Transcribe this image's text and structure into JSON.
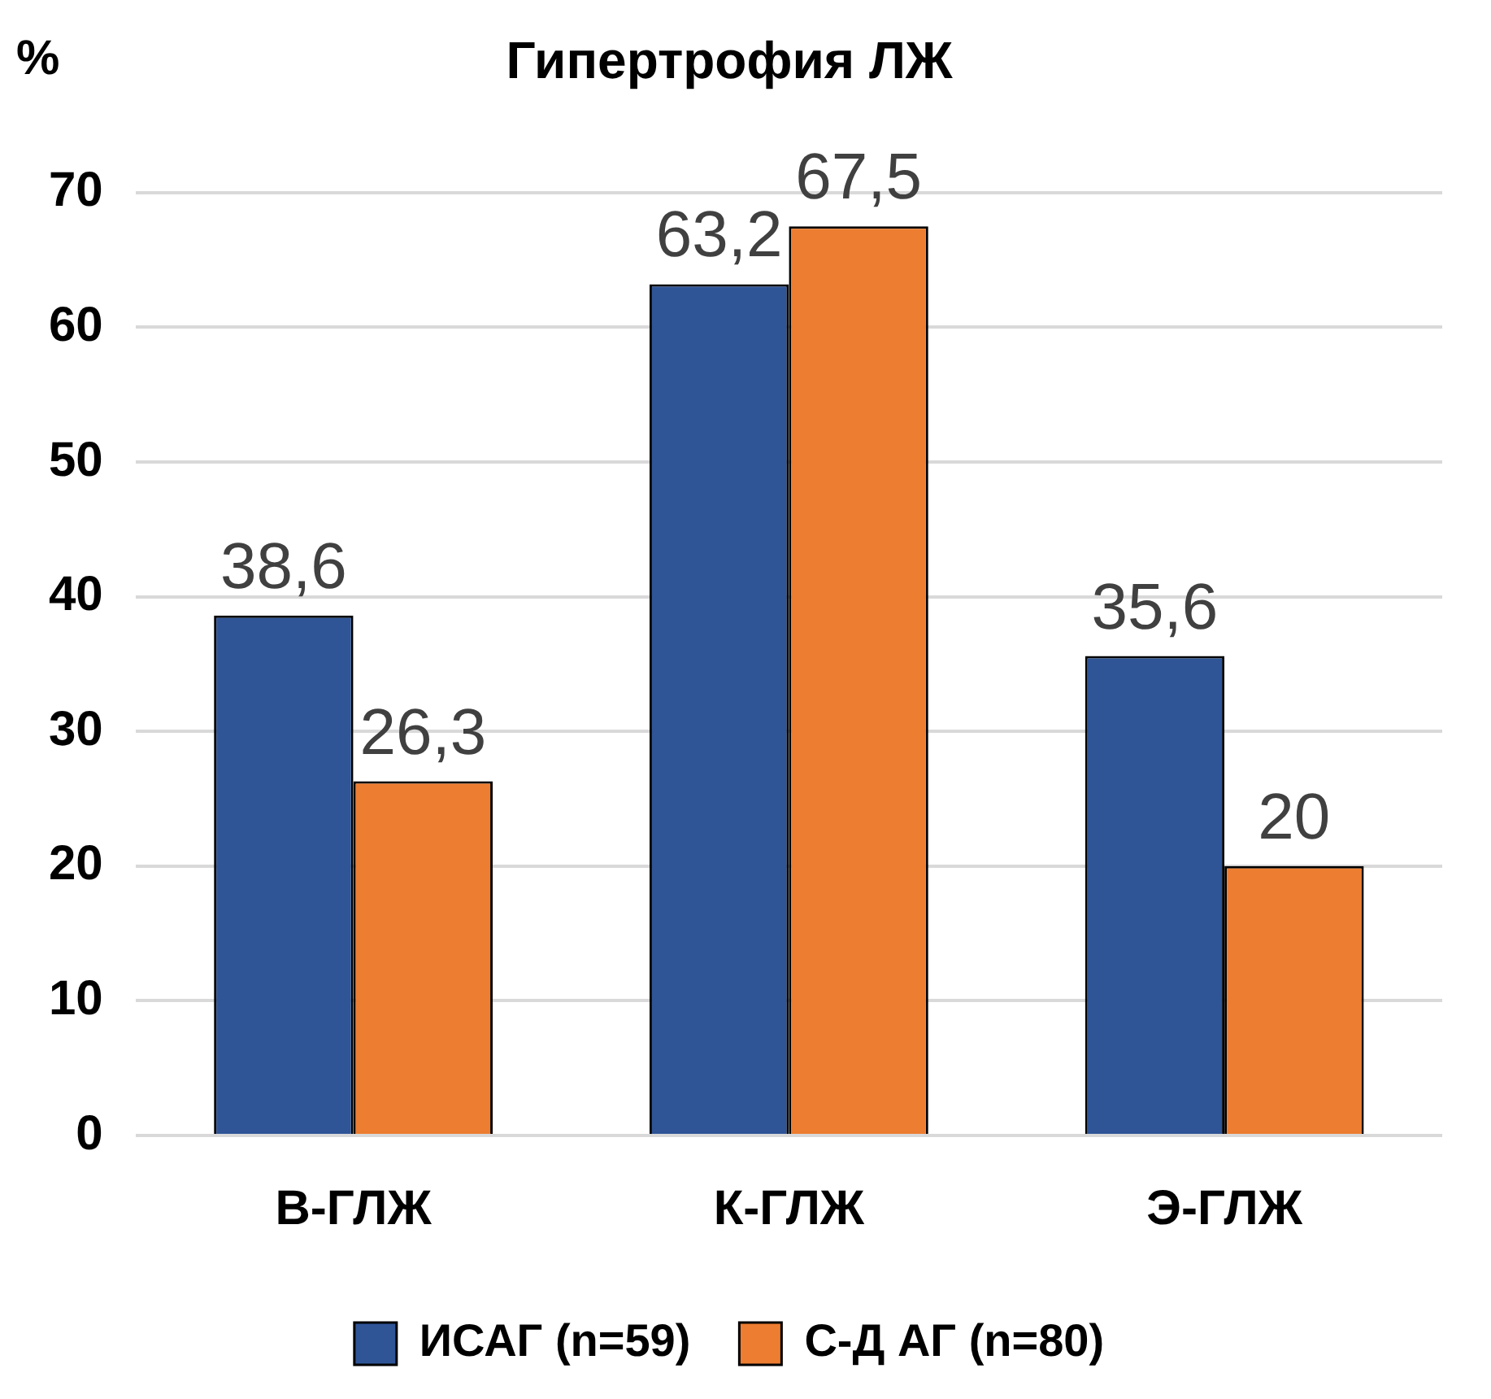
{
  "chart_data": {
    "type": "bar",
    "title": "Гипертрофия ЛЖ",
    "ylabel": "%",
    "categories": [
      "В-ГЛЖ",
      "К-ГЛЖ",
      "Э-ГЛЖ"
    ],
    "series": [
      {
        "name": "ИСАГ (n=59)",
        "color": "#2f5597",
        "values": [
          38.6,
          63.2,
          35.6
        ]
      },
      {
        "name": "С-Д АГ (n=80)",
        "color": "#ed7d31",
        "values": [
          26.3,
          67.5,
          20
        ]
      }
    ],
    "value_labels": [
      [
        "38,6",
        "63,2",
        "35,6"
      ],
      [
        "26,3",
        "67,5",
        "20"
      ]
    ],
    "ylim": [
      0,
      70
    ],
    "yticks": [
      0,
      10,
      20,
      30,
      40,
      50,
      60,
      70
    ],
    "grid": "y",
    "legend": "bottom"
  }
}
